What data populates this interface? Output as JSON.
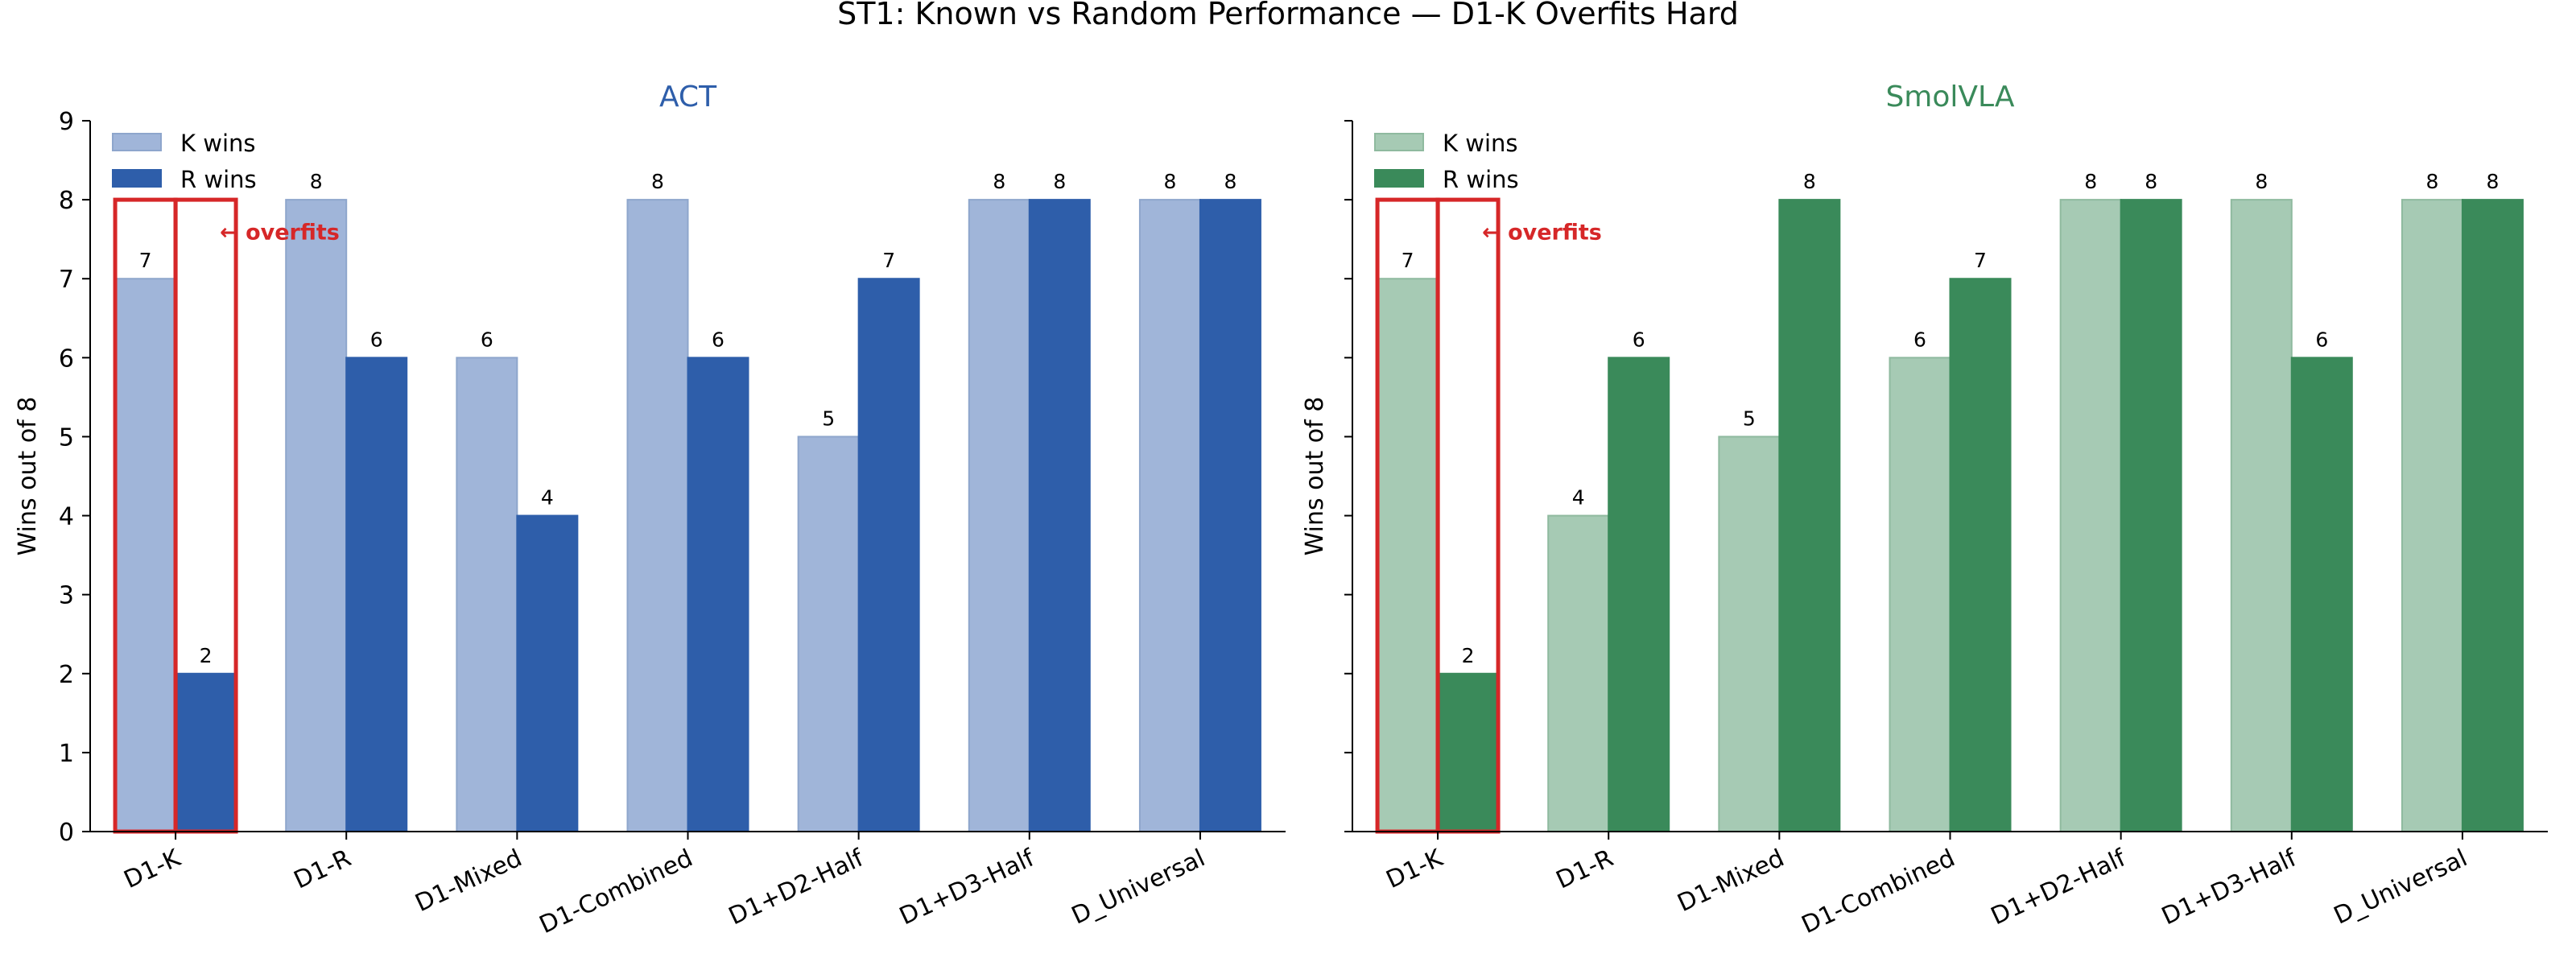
{
  "suptitle": "ST1: Known vs Random Performance — D1-K Overfits Hard",
  "chart_data": [
    {
      "type": "bar",
      "title": "ACT",
      "title_color": "#2e5eaa",
      "ylabel": "Wins out of 8",
      "ylim": [
        0,
        9
      ],
      "yticks": [
        0,
        1,
        2,
        3,
        4,
        5,
        6,
        7,
        8,
        9
      ],
      "categories": [
        "D1-K",
        "D1-R",
        "D1-Mixed",
        "D1-Combined",
        "D1+D2-Half",
        "D1+D3-Half",
        "D_Universal"
      ],
      "series": [
        {
          "name": "K wins",
          "values": [
            7,
            8,
            6,
            8,
            5,
            8,
            8
          ],
          "color": "#a0b5d9",
          "edge": "#8ea6cc"
        },
        {
          "name": "R wins",
          "values": [
            2,
            6,
            4,
            6,
            7,
            8,
            8
          ],
          "color": "#2e5eaa",
          "edge": "#2e5eaa"
        }
      ],
      "legend": "upper-left",
      "highlight": {
        "category": "D1-K",
        "ymax": 8,
        "color": "#d62728",
        "annotation": "← overfits"
      }
    },
    {
      "type": "bar",
      "title": "SmolVLA",
      "title_color": "#3a8a5a",
      "ylabel": "Wins out of 8",
      "ylim": [
        0,
        9
      ],
      "yticks": [
        0,
        1,
        2,
        3,
        4,
        5,
        6,
        7,
        8,
        9
      ],
      "categories": [
        "D1-K",
        "D1-R",
        "D1-Mixed",
        "D1-Combined",
        "D1+D2-Half",
        "D1+D3-Half",
        "D_Universal"
      ],
      "series": [
        {
          "name": "K wins",
          "values": [
            7,
            4,
            5,
            6,
            8,
            8,
            8
          ],
          "color": "#a6cab4",
          "edge": "#8fba9f"
        },
        {
          "name": "R wins",
          "values": [
            2,
            6,
            8,
            7,
            8,
            6,
            8
          ],
          "color": "#3a8a5a",
          "edge": "#3a8a5a"
        }
      ],
      "legend": "upper-left",
      "highlight": {
        "category": "D1-K",
        "ymax": 8,
        "color": "#d62728",
        "annotation": "← overfits"
      }
    }
  ]
}
